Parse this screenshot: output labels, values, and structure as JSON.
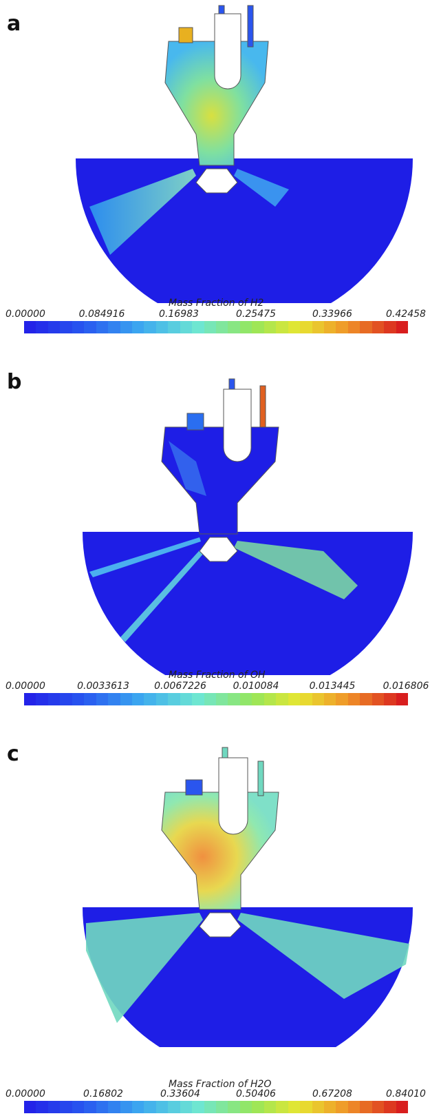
{
  "panels": [
    {
      "letter": "a",
      "colorbar": {
        "title": "Mass Fraction of H2",
        "ticks": [
          "0.00000",
          "0.084916",
          "0.16983",
          "0.25475",
          "0.33966",
          "0.42458"
        ]
      }
    },
    {
      "letter": "b",
      "colorbar": {
        "title": "Mass Fraction of OH",
        "ticks": [
          "0.00000",
          "0.0033613",
          "0.0067226",
          "0.010084",
          "0.013445",
          "0.016806"
        ]
      }
    },
    {
      "letter": "c",
      "colorbar": {
        "title": "Mass Fraction of H2O",
        "ticks": [
          "0.00000",
          "0.16802",
          "0.33604",
          "0.50406",
          "0.67208",
          "0.84010"
        ]
      }
    }
  ],
  "colors": {
    "background": "#1e1ee6",
    "low": "#2323e8",
    "mid": "#7fe8c8",
    "high": "#d81e1e"
  }
}
